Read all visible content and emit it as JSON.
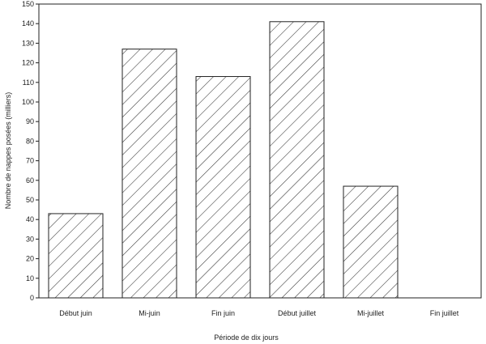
{
  "chart_data": {
    "type": "bar",
    "title": "",
    "xlabel": "Période de dix jours",
    "ylabel": "Nombre de nappes posées (milliers)",
    "ylim": [
      0,
      150
    ],
    "yticks": [
      0,
      10,
      20,
      30,
      40,
      50,
      60,
      70,
      80,
      90,
      100,
      110,
      120,
      130,
      140,
      150
    ],
    "categories": [
      "Début juin",
      "Mi-juin",
      "Fin juin",
      "Début juillet",
      "Mi-juillet",
      "Fin juillet"
    ],
    "values": [
      43,
      127,
      113,
      141,
      57,
      0
    ],
    "grid": false,
    "legend": "none",
    "bar_fill": "diagonal-hatch",
    "colors": {
      "stroke": "#222222",
      "hatch": "#333333",
      "background": "#ffffff"
    }
  }
}
